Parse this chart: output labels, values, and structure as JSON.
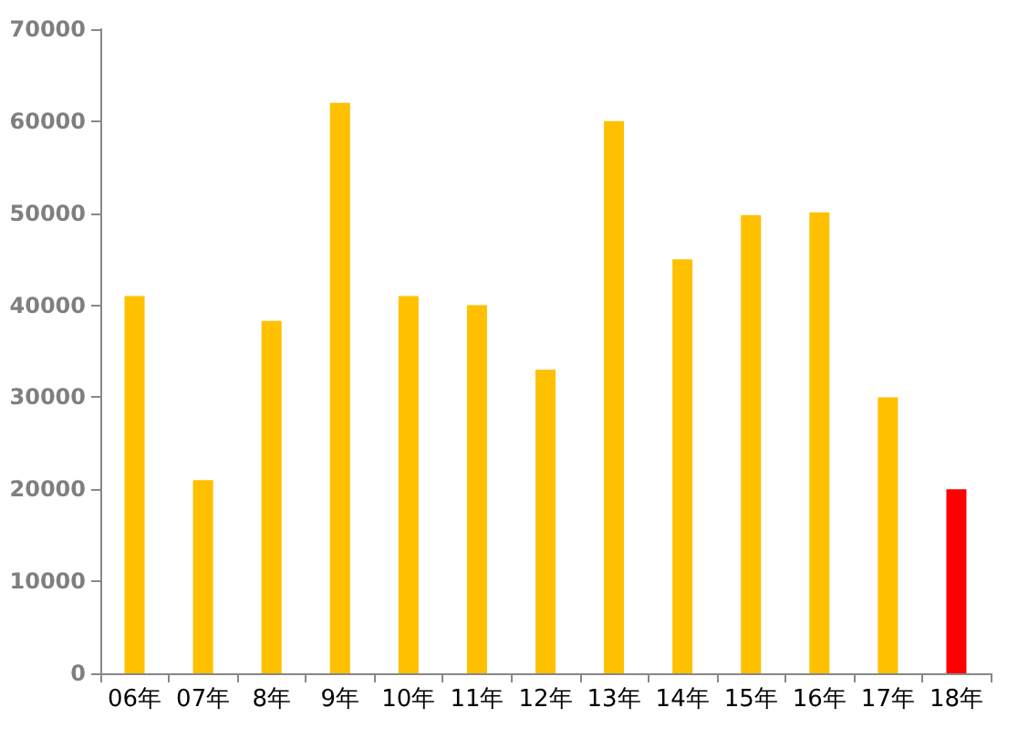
{
  "chart_data": {
    "type": "bar",
    "categories": [
      "06年",
      "07年",
      "8年",
      "9年",
      "10年",
      "11年",
      "12年",
      "13年",
      "14年",
      "15年",
      "16年",
      "17年",
      "18年"
    ],
    "values": [
      41000,
      21000,
      38300,
      62000,
      41000,
      40000,
      33000,
      60000,
      45000,
      49800,
      50100,
      30000,
      20000
    ],
    "colors": [
      "#ffc000",
      "#ffc000",
      "#ffc000",
      "#ffc000",
      "#ffc000",
      "#ffc000",
      "#ffc000",
      "#ffc000",
      "#ffc000",
      "#ffc000",
      "#ffc000",
      "#ffc000",
      "#ff0000"
    ],
    "ylim": [
      0,
      70000
    ],
    "yticks": [
      0,
      10000,
      20000,
      30000,
      40000,
      50000,
      60000,
      70000
    ],
    "grid": false
  }
}
